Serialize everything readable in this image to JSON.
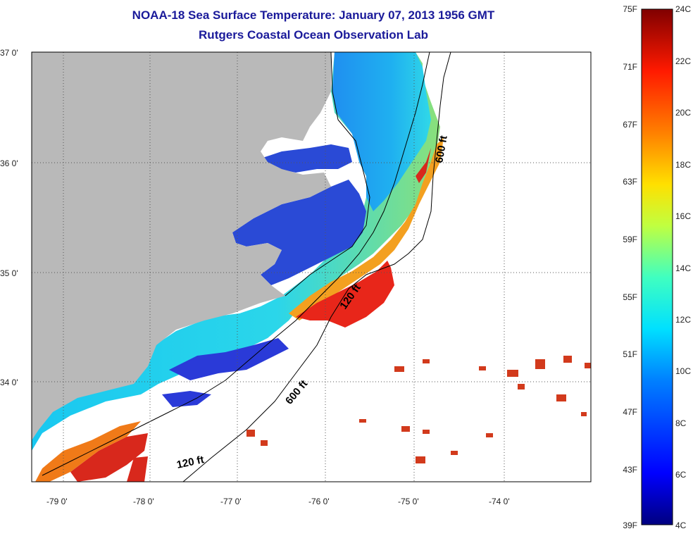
{
  "header": {
    "title": "NOAA-18 Sea Surface Temperature:  January 07, 2013 1956 GMT",
    "subtitle": "Rutgers Coastal Ocean Observation Lab"
  },
  "map": {
    "lat_labels": [
      "37 0'",
      "36 0'",
      "35 0'",
      "34 0'"
    ],
    "lon_labels": [
      "-79 0'",
      "-78 0'",
      "-77 0'",
      "-76 0'",
      "-75 0'",
      "-74 0'"
    ],
    "contour_labels": {
      "c600_north": "600 ft",
      "c120_mid": "120 ft",
      "c600_south": "600 ft",
      "c120_south": "120 ft"
    },
    "colors": {
      "land": "#b9b9b9",
      "no_data": "#ffffff",
      "sound": "#2a4ad6",
      "grid": "#555555"
    }
  },
  "colorbar": {
    "fahrenheit_labels": [
      "75F",
      "71F",
      "67F",
      "63F",
      "59F",
      "55F",
      "51F",
      "47F",
      "43F",
      "39F"
    ],
    "celsius_labels": [
      "24C",
      "22C",
      "20C",
      "18C",
      "16C",
      "14C",
      "12C",
      "10C",
      "8C",
      "6C",
      "4C"
    ],
    "range_c": [
      4,
      24
    ],
    "colors": [
      "#000080",
      "#0000ff",
      "#0080ff",
      "#00e0ff",
      "#40ffc0",
      "#c0ff40",
      "#ffe000",
      "#ff8000",
      "#ff1a00",
      "#800000"
    ]
  }
}
